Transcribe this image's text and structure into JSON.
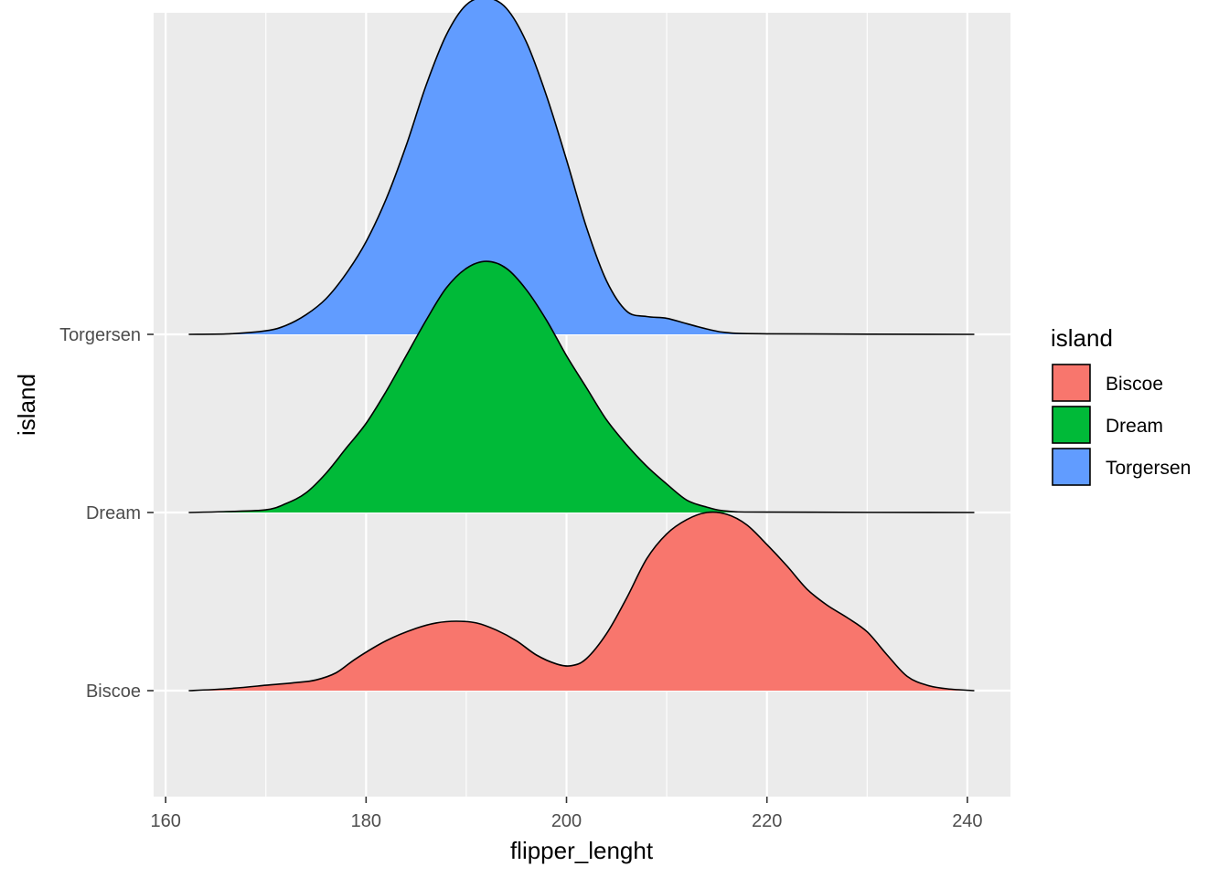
{
  "chart_data": {
    "type": "area",
    "subtype": "ridgeline-density",
    "xlabel": "flipper_lenght",
    "ylabel": "island",
    "xlim": [
      158.8,
      244.3
    ],
    "x_ticks": [
      160,
      180,
      200,
      220,
      240
    ],
    "x_tick_labels": [
      "160",
      "180",
      "200",
      "220",
      "240"
    ],
    "y_categories": [
      "Biscoe",
      "Dream",
      "Torgersen"
    ],
    "grid": true,
    "background": "#ebebeb",
    "legend": {
      "title": "island",
      "position": "right",
      "entries": [
        "Biscoe",
        "Dream",
        "Torgersen"
      ]
    },
    "series": [
      {
        "name": "Biscoe",
        "color": "#f8766d",
        "x_range": [
          162.3,
          240.7
        ],
        "points": [
          [
            162.3,
            0
          ],
          [
            166,
            0.01
          ],
          [
            170,
            0.03
          ],
          [
            173,
            0.045
          ],
          [
            175,
            0.06
          ],
          [
            177,
            0.1
          ],
          [
            179,
            0.18
          ],
          [
            182,
            0.28
          ],
          [
            185,
            0.35
          ],
          [
            187,
            0.38
          ],
          [
            189,
            0.39
          ],
          [
            191,
            0.38
          ],
          [
            193,
            0.34
          ],
          [
            195,
            0.28
          ],
          [
            197,
            0.2
          ],
          [
            199,
            0.15
          ],
          [
            200.5,
            0.14
          ],
          [
            202,
            0.18
          ],
          [
            204,
            0.32
          ],
          [
            206,
            0.52
          ],
          [
            208,
            0.74
          ],
          [
            210,
            0.88
          ],
          [
            212,
            0.96
          ],
          [
            214,
            1.0
          ],
          [
            216,
            0.99
          ],
          [
            218,
            0.93
          ],
          [
            220,
            0.82
          ],
          [
            222,
            0.7
          ],
          [
            224,
            0.57
          ],
          [
            226,
            0.48
          ],
          [
            228,
            0.41
          ],
          [
            230,
            0.33
          ],
          [
            232,
            0.2
          ],
          [
            234,
            0.08
          ],
          [
            236,
            0.03
          ],
          [
            238,
            0.01
          ],
          [
            240.7,
            0
          ]
        ]
      },
      {
        "name": "Dream",
        "color": "#00ba38",
        "x_range": [
          162.3,
          240.7
        ],
        "points": [
          [
            162.3,
            0
          ],
          [
            166,
            0.005
          ],
          [
            170,
            0.015
          ],
          [
            172,
            0.05
          ],
          [
            174,
            0.11
          ],
          [
            176,
            0.22
          ],
          [
            178,
            0.36
          ],
          [
            180,
            0.5
          ],
          [
            182,
            0.68
          ],
          [
            184,
            0.88
          ],
          [
            186,
            1.08
          ],
          [
            188,
            1.26
          ],
          [
            190,
            1.37
          ],
          [
            192,
            1.41
          ],
          [
            194,
            1.37
          ],
          [
            196,
            1.25
          ],
          [
            198,
            1.08
          ],
          [
            200,
            0.88
          ],
          [
            202,
            0.7
          ],
          [
            204,
            0.52
          ],
          [
            206,
            0.38
          ],
          [
            208,
            0.26
          ],
          [
            210,
            0.16
          ],
          [
            212,
            0.07
          ],
          [
            214,
            0.03
          ],
          [
            216,
            0.008
          ],
          [
            220,
            0.002
          ],
          [
            240.7,
            0
          ]
        ]
      },
      {
        "name": "Torgersen",
        "color": "#619cff",
        "x_range": [
          162.3,
          240.7
        ],
        "points": [
          [
            162.3,
            0
          ],
          [
            166,
            0.002
          ],
          [
            170,
            0.02
          ],
          [
            172,
            0.05
          ],
          [
            174,
            0.11
          ],
          [
            176,
            0.2
          ],
          [
            178,
            0.34
          ],
          [
            180,
            0.52
          ],
          [
            182,
            0.76
          ],
          [
            184,
            1.06
          ],
          [
            186,
            1.4
          ],
          [
            188,
            1.68
          ],
          [
            190,
            1.85
          ],
          [
            192,
            1.89
          ],
          [
            194,
            1.83
          ],
          [
            196,
            1.64
          ],
          [
            198,
            1.34
          ],
          [
            200,
            0.98
          ],
          [
            202,
            0.6
          ],
          [
            204,
            0.3
          ],
          [
            206,
            0.13
          ],
          [
            208,
            0.1
          ],
          [
            210,
            0.09
          ],
          [
            212,
            0.06
          ],
          [
            214,
            0.03
          ],
          [
            216,
            0.01
          ],
          [
            220,
            0.003
          ],
          [
            240.7,
            0
          ]
        ]
      }
    ]
  }
}
